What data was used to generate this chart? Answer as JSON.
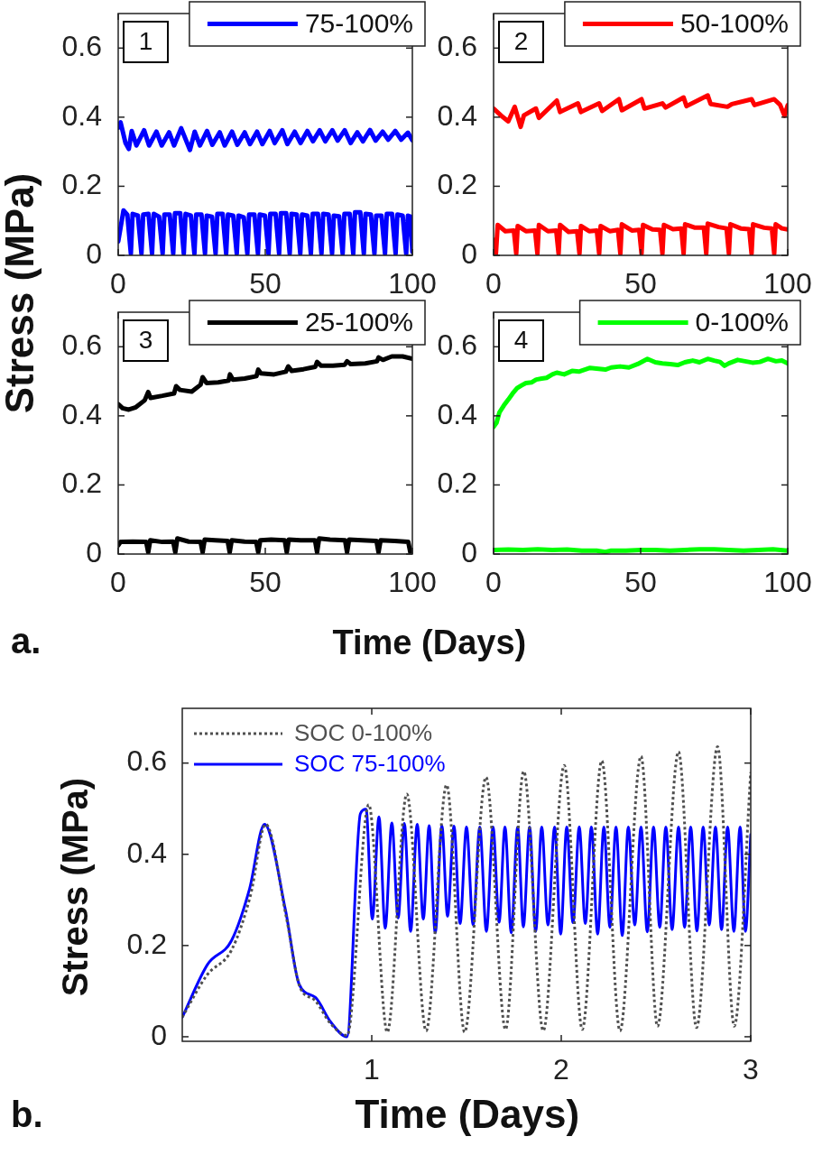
{
  "chart_data": [
    {
      "type": "line",
      "annotations": [
        "1"
      ],
      "ylabel": "Stress (MPa)",
      "xlim": [
        0,
        100
      ],
      "xticks": [
        0,
        50,
        100
      ],
      "ylim": [
        0,
        0.7
      ],
      "yticks": [
        0,
        0.2,
        0.4,
        0.6
      ],
      "legend": "top right",
      "series": [
        {
          "name": "75-100%",
          "color": "#0000ff",
          "x": [
            0,
            0.8,
            2.5,
            3.6,
            4.6,
            6.2,
            8.8,
            10.5,
            13,
            14.8,
            17.3,
            19,
            21.4,
            24.4,
            26,
            27.8,
            30.2,
            32,
            34.5,
            36.2,
            38.7,
            40.5,
            43,
            44.8,
            47.2,
            49,
            51.5,
            53.2,
            55.8,
            57.5,
            60,
            62,
            64.3,
            66.2,
            68.5,
            70.4,
            72.8,
            74.6,
            77,
            79,
            81.3,
            83.2,
            85.6,
            87.5,
            89.9,
            91.8,
            94.2,
            96.2,
            98.5,
            100
          ],
          "values": [
            0.37,
            0.385,
            0.325,
            0.308,
            0.36,
            0.318,
            0.362,
            0.318,
            0.358,
            0.318,
            0.356,
            0.318,
            0.368,
            0.305,
            0.358,
            0.318,
            0.36,
            0.32,
            0.356,
            0.318,
            0.358,
            0.32,
            0.356,
            0.322,
            0.358,
            0.322,
            0.36,
            0.325,
            0.362,
            0.322,
            0.358,
            0.325,
            0.36,
            0.33,
            0.362,
            0.33,
            0.362,
            0.332,
            0.362,
            0.325,
            0.356,
            0.33,
            0.363,
            0.332,
            0.358,
            0.335,
            0.36,
            0.335,
            0.355,
            0.333
          ]
        },
        {
          "color": "#0000ff",
          "x": [
            0,
            1.8,
            3.1,
            4.3,
            4.9,
            6.7,
            7.9,
            8.5,
            10.3,
            11.5,
            12.1,
            13.9,
            15.1,
            15.7,
            17.5,
            18.7,
            19.3,
            21.1,
            22.3,
            22.9,
            24.7,
            25.9,
            26.5,
            28.3,
            29.5,
            30.1,
            31.9,
            33.1,
            33.7,
            35.5,
            36.7,
            37.3,
            39.1,
            40.3,
            40.9,
            42.7,
            43.9,
            44.5,
            46.3,
            47.5,
            48.1,
            49.9,
            51.1,
            51.7,
            53.5,
            54.7,
            55.3,
            57.1,
            58.3,
            58.9,
            60.7,
            61.9,
            62.5,
            64.3,
            65.5,
            66.1,
            67.9,
            69.1,
            69.7,
            71.5,
            72.7,
            73.3,
            75.1,
            76.3,
            76.9,
            78.7,
            79.9,
            80.5,
            82.3,
            83.5,
            84.1,
            85.9,
            87.1,
            87.7,
            89.5,
            90.7,
            91.3,
            93.1,
            94.3,
            94.9,
            96.7,
            97.9,
            98.5,
            99.4,
            100
          ],
          "values": [
            0.04,
            0.13,
            0.118,
            0.005,
            0.12,
            0.115,
            0.005,
            0.118,
            0.12,
            0.005,
            0.12,
            0.112,
            0.005,
            0.118,
            0.118,
            0.005,
            0.122,
            0.122,
            0.005,
            0.12,
            0.115,
            0.005,
            0.118,
            0.118,
            0.005,
            0.115,
            0.112,
            0.005,
            0.12,
            0.12,
            0.005,
            0.118,
            0.115,
            0.005,
            0.115,
            0.11,
            0.005,
            0.118,
            0.118,
            0.005,
            0.118,
            0.115,
            0.005,
            0.12,
            0.12,
            0.005,
            0.122,
            0.122,
            0.005,
            0.12,
            0.118,
            0.005,
            0.118,
            0.115,
            0.005,
            0.12,
            0.12,
            0.005,
            0.12,
            0.118,
            0.005,
            0.115,
            0.113,
            0.005,
            0.12,
            0.12,
            0.005,
            0.125,
            0.125,
            0.005,
            0.12,
            0.118,
            0.005,
            0.115,
            0.115,
            0.005,
            0.12,
            0.12,
            0.005,
            0.118,
            0.115,
            0.005,
            0.115,
            0.112,
            0.01
          ]
        }
      ]
    },
    {
      "type": "line",
      "annotations": [
        "2"
      ],
      "xlim": [
        0,
        100
      ],
      "xticks": [
        0,
        50,
        100
      ],
      "ylim": [
        0,
        0.7
      ],
      "yticks": [
        0,
        0.2,
        0.4,
        0.6
      ],
      "legend": "top right",
      "series": [
        {
          "name": "50-100%",
          "color": "#ff0000",
          "x": [
            0,
            2.5,
            5,
            7.2,
            9.2,
            10.3,
            14.4,
            15.4,
            21.5,
            22.6,
            28.7,
            29.7,
            35.9,
            36.9,
            42.6,
            43.6,
            50.3,
            51.3,
            57.4,
            58.5,
            64.6,
            65.6,
            72.8,
            73.8,
            79.5,
            81,
            87.7,
            88.7,
            95.4,
            97.4,
            98.9,
            100
          ],
          "values": [
            0.425,
            0.405,
            0.388,
            0.43,
            0.372,
            0.405,
            0.425,
            0.398,
            0.448,
            0.415,
            0.44,
            0.415,
            0.44,
            0.418,
            0.452,
            0.42,
            0.452,
            0.425,
            0.44,
            0.428,
            0.457,
            0.432,
            0.463,
            0.438,
            0.43,
            0.438,
            0.452,
            0.435,
            0.452,
            0.436,
            0.404,
            0.435
          ]
        },
        {
          "color": "#ff0000",
          "x": [
            0,
            0.8,
            1.4,
            4,
            6.9,
            7.7,
            8.2,
            11,
            14.1,
            14.9,
            15.4,
            18.5,
            21.3,
            22.1,
            22.6,
            25.5,
            28.4,
            29.2,
            29.7,
            32.5,
            35.1,
            35.9,
            36.4,
            39.5,
            42.3,
            43.1,
            43.6,
            47,
            49.5,
            50.3,
            50.8,
            54,
            56.6,
            57.4,
            57.9,
            61,
            63.8,
            64.6,
            65.1,
            68.5,
            71.5,
            72.3,
            72.8,
            76.5,
            79.2,
            80,
            80.5,
            84,
            86.9,
            87.7,
            88.2,
            92,
            94.6,
            95.4,
            95.9,
            98,
            100
          ],
          "values": [
            0.045,
            0.005,
            0.088,
            0.07,
            0.072,
            0.005,
            0.085,
            0.07,
            0.072,
            0.005,
            0.088,
            0.07,
            0.072,
            0.005,
            0.088,
            0.068,
            0.07,
            0.005,
            0.085,
            0.07,
            0.072,
            0.005,
            0.085,
            0.07,
            0.074,
            0.005,
            0.09,
            0.072,
            0.074,
            0.005,
            0.088,
            0.075,
            0.074,
            0.005,
            0.088,
            0.076,
            0.078,
            0.005,
            0.09,
            0.08,
            0.08,
            0.005,
            0.092,
            0.082,
            0.078,
            0.005,
            0.09,
            0.078,
            0.076,
            0.005,
            0.09,
            0.08,
            0.078,
            0.005,
            0.09,
            0.078,
            0.075
          ]
        }
      ]
    },
    {
      "type": "line",
      "annotations": [
        "3",
        "a."
      ],
      "xlabel": "Time (Days)",
      "xlim": [
        0,
        100
      ],
      "xticks": [
        0,
        50,
        100
      ],
      "ylim": [
        0,
        0.7
      ],
      "yticks": [
        0,
        0.2,
        0.4,
        0.6
      ],
      "legend": "top right",
      "series": [
        {
          "name": "25-100%",
          "color": "#000000",
          "x": [
            0,
            1.5,
            3.6,
            6,
            9,
            10.2,
            11,
            15,
            19,
            19.7,
            21,
            25,
            28,
            28.7,
            30,
            34,
            37.5,
            38,
            39,
            43,
            47,
            47.6,
            48.5,
            53,
            57,
            57.8,
            59,
            63,
            67,
            67.6,
            69,
            73,
            77,
            77.8,
            79,
            84,
            88,
            88.5,
            90,
            93,
            96.7,
            100
          ],
          "values": [
            0.434,
            0.422,
            0.418,
            0.425,
            0.445,
            0.469,
            0.452,
            0.458,
            0.465,
            0.486,
            0.475,
            0.47,
            0.49,
            0.512,
            0.495,
            0.497,
            0.502,
            0.52,
            0.505,
            0.508,
            0.515,
            0.534,
            0.523,
            0.52,
            0.528,
            0.543,
            0.53,
            0.535,
            0.542,
            0.556,
            0.545,
            0.545,
            0.548,
            0.558,
            0.55,
            0.552,
            0.558,
            0.569,
            0.562,
            0.572,
            0.572,
            0.565
          ]
        },
        {
          "color": "#000000",
          "x": [
            0,
            0.8,
            5,
            9.5,
            10.2,
            10.9,
            15,
            18.7,
            19.4,
            20.1,
            24,
            28,
            28.7,
            29.4,
            33,
            37.2,
            37.9,
            38.6,
            43,
            46.9,
            47.6,
            48.3,
            52,
            56.6,
            57.3,
            58,
            62,
            66.9,
            67.6,
            68.3,
            72,
            77.1,
            77.8,
            78.5,
            83,
            87.8,
            88.5,
            89.2,
            94,
            98.6,
            99.3,
            100
          ],
          "values": [
            0.025,
            0.035,
            0.036,
            0.035,
            0.005,
            0.04,
            0.035,
            0.036,
            0.005,
            0.045,
            0.036,
            0.035,
            0.005,
            0.042,
            0.04,
            0.038,
            0.005,
            0.04,
            0.036,
            0.035,
            0.005,
            0.04,
            0.042,
            0.04,
            0.005,
            0.042,
            0.04,
            0.04,
            0.005,
            0.045,
            0.042,
            0.04,
            0.005,
            0.042,
            0.04,
            0.038,
            0.005,
            0.04,
            0.038,
            0.035,
            0.005,
            0.01
          ]
        }
      ]
    },
    {
      "type": "line",
      "annotations": [
        "4"
      ],
      "xlim": [
        0,
        100
      ],
      "xticks": [
        0,
        50,
        100
      ],
      "ylim": [
        0,
        0.7
      ],
      "yticks": [
        0,
        0.2,
        0.4,
        0.6
      ],
      "legend": "top right",
      "series": [
        {
          "name": "0-100%",
          "color": "#00ff00",
          "x": [
            0,
            1,
            2,
            3.5,
            5,
            6.5,
            8,
            9.5,
            11,
            13,
            14.5,
            16.4,
            18,
            20,
            21.5,
            24,
            26.7,
            29,
            32.8,
            35,
            38,
            40,
            43,
            46,
            49,
            52.3,
            55,
            57.4,
            60,
            62.6,
            65,
            67.7,
            70,
            72.8,
            75,
            77,
            78.5,
            80,
            83,
            85.5,
            88,
            90.5,
            93.3,
            96,
            98,
            100
          ],
          "values": [
            0.368,
            0.38,
            0.41,
            0.43,
            0.447,
            0.465,
            0.48,
            0.488,
            0.495,
            0.497,
            0.505,
            0.508,
            0.51,
            0.52,
            0.525,
            0.52,
            0.53,
            0.528,
            0.539,
            0.537,
            0.534,
            0.54,
            0.543,
            0.54,
            0.55,
            0.565,
            0.555,
            0.552,
            0.55,
            0.547,
            0.555,
            0.56,
            0.555,
            0.565,
            0.56,
            0.556,
            0.545,
            0.552,
            0.562,
            0.558,
            0.554,
            0.556,
            0.565,
            0.558,
            0.56,
            0.552
          ]
        },
        {
          "color": "#00ff00",
          "x": [
            0,
            5,
            10,
            15,
            20,
            25,
            30,
            35,
            38,
            40,
            45,
            50,
            55,
            60,
            65,
            70,
            75,
            80,
            85,
            90,
            95,
            100
          ],
          "values": [
            0.012,
            0.013,
            0.012,
            0.014,
            0.012,
            0.013,
            0.01,
            0.01,
            0.006,
            0.01,
            0.01,
            0.012,
            0.012,
            0.01,
            0.012,
            0.014,
            0.014,
            0.012,
            0.01,
            0.012,
            0.014,
            0.01
          ]
        }
      ]
    },
    {
      "type": "line",
      "annotations": [
        "b."
      ],
      "xlabel": "Time (Days)",
      "ylabel": "Stress (MPa)",
      "xlim": [
        0,
        3
      ],
      "xticks": [
        1,
        2,
        3
      ],
      "ylim": [
        -0.01,
        0.72
      ],
      "yticks": [
        0,
        0.2,
        0.4,
        0.6
      ],
      "legend": "top left",
      "series": [
        {
          "name": "SOC 0-100%",
          "color": "#505050",
          "line_style": "dotted",
          "x": [
            0,
            0.13,
            0.26,
            0.36,
            0.44,
            0.55,
            0.62,
            0.7,
            0.78,
            0.87,
            0.984,
            1.082,
            1.185,
            1.287,
            1.395,
            1.49,
            1.603,
            1.706,
            1.802,
            1.905,
            2.016,
            2.111,
            2.214,
            2.31,
            2.421,
            2.508,
            2.619,
            2.714,
            2.825,
            2.913,
            3
          ],
          "values": [
            0.043,
            0.135,
            0.19,
            0.31,
            0.466,
            0.26,
            0.11,
            0.08,
            0.03,
            0.003,
            0.509,
            0.01,
            0.532,
            0.013,
            0.552,
            0.01,
            0.569,
            0.016,
            0.582,
            0.013,
            0.595,
            0.016,
            0.605,
            0.013,
            0.615,
            0.023,
            0.625,
            0.02,
            0.636,
            0.023,
            0.58
          ]
        },
        {
          "name": "SOC 75-100%",
          "color": "#0000ff",
          "x": [
            0,
            0.134,
            0.26,
            0.355,
            0.434,
            0.545,
            0.616,
            0.703,
            0.782,
            0.869,
            0.94,
            0.97,
            1.003,
            1.038,
            1.071,
            1.106,
            1.139,
            1.172,
            1.205,
            1.24,
            1.272,
            1.303,
            1.335,
            1.37,
            1.4,
            1.434,
            1.466,
            1.5,
            1.535,
            1.57,
            1.605,
            1.64,
            1.672,
            1.703,
            1.736,
            1.77,
            1.8,
            1.833,
            1.865,
            1.897,
            1.93,
            1.965,
            1.997,
            2.029,
            2.062,
            2.095,
            2.127,
            2.159,
            2.192,
            2.225,
            2.257,
            2.289,
            2.322,
            2.354,
            2.388,
            2.421,
            2.454,
            2.487,
            2.52,
            2.552,
            2.585,
            2.619,
            2.651,
            2.683,
            2.716,
            2.749,
            2.781,
            2.814,
            2.846,
            2.878,
            2.911,
            2.944,
            2.972,
            3
          ],
          "values": [
            0.043,
            0.159,
            0.211,
            0.324,
            0.466,
            0.277,
            0.116,
            0.086,
            0.033,
            0,
            0.489,
            0.499,
            0.258,
            0.482,
            0.238,
            0.469,
            0.26,
            0.468,
            0.231,
            0.466,
            0.258,
            0.463,
            0.228,
            0.463,
            0.264,
            0.462,
            0.248,
            0.46,
            0.245,
            0.46,
            0.231,
            0.46,
            0.251,
            0.46,
            0.228,
            0.46,
            0.241,
            0.46,
            0.231,
            0.46,
            0.245,
            0.46,
            0.225,
            0.46,
            0.25,
            0.46,
            0.248,
            0.46,
            0.225,
            0.46,
            0.24,
            0.46,
            0.222,
            0.46,
            0.245,
            0.46,
            0.23,
            0.46,
            0.24,
            0.46,
            0.235,
            0.46,
            0.24,
            0.46,
            0.232,
            0.46,
            0.245,
            0.46,
            0.235,
            0.46,
            0.231,
            0.46,
            0.231,
            0.443
          ]
        }
      ]
    }
  ]
}
